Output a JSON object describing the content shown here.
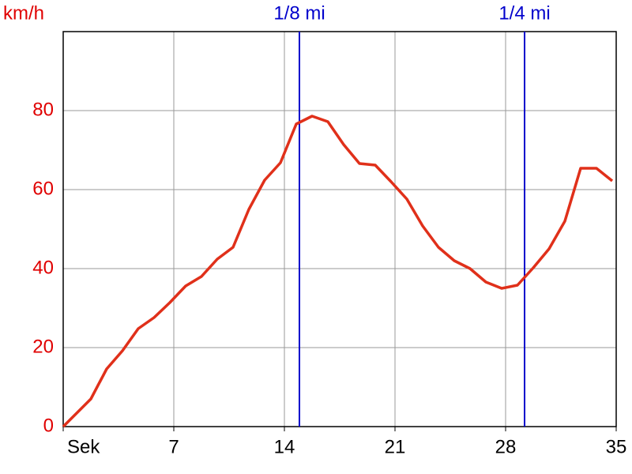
{
  "chart_data": {
    "type": "line",
    "y_label": "km/h",
    "x": [
      0,
      1.75,
      2.75,
      3.75,
      4.75,
      5.75,
      6.75,
      7.75,
      8.75,
      9.75,
      10.75,
      11.75,
      12.75,
      13.75,
      14.75,
      15.75,
      16.75,
      17.75,
      18.75,
      19.75,
      20.75,
      21.75,
      22.75,
      23.75,
      24.75,
      25.75,
      26.75,
      27.75,
      28.75,
      29.75,
      30.75,
      31.75,
      32.75,
      33.75,
      34.75
    ],
    "series": [
      {
        "color": "#e0301a",
        "values": [
          0,
          7,
          14.6,
          19.2,
          24.8,
          27.6,
          31.4,
          35.6,
          38,
          42.4,
          45.4,
          55,
          62.4,
          66.8,
          76.6,
          78.6,
          77.2,
          71.4,
          66.6,
          66.2,
          62,
          57.6,
          50.8,
          45.4,
          42,
          40,
          36.6,
          35,
          35.8,
          40.2,
          45,
          52,
          65.4,
          65.4,
          62.2
        ]
      }
    ],
    "xlim": [
      0,
      35
    ],
    "xticks": [
      {
        "value": 0,
        "label": "Sek"
      },
      7,
      14,
      21,
      28,
      35
    ],
    "ylim": [
      0,
      100
    ],
    "yticks": [
      0,
      20,
      40,
      60,
      80
    ],
    "grid": true,
    "y_tick_color": "#e00000",
    "markers": [
      {
        "label": "1/8 mi",
        "x": 14.95,
        "color": "#0000cc"
      },
      {
        "label": "1/4 mi",
        "x": 29.2,
        "color": "#0000cc"
      }
    ]
  }
}
